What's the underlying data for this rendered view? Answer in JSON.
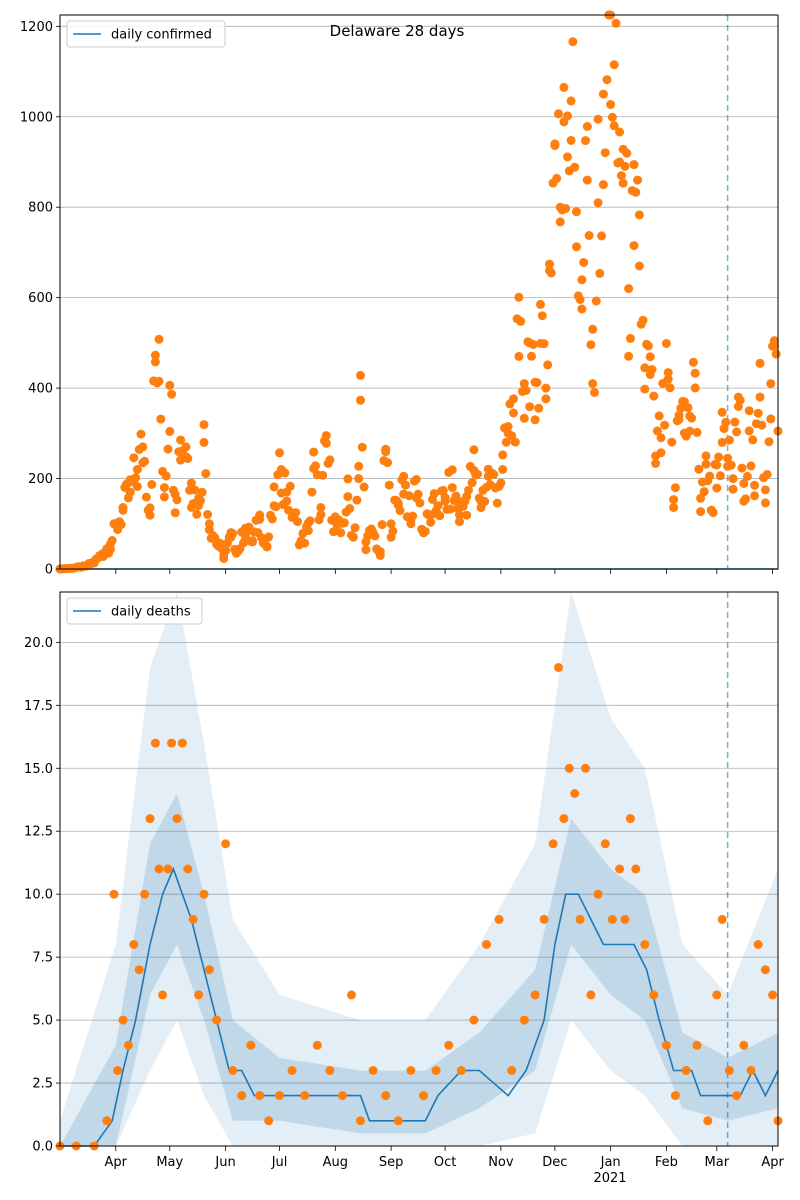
{
  "chart_data": [
    {
      "type": "scatter",
      "title": "Delaware 28 days",
      "legend": {
        "entries": [
          "daily confirmed"
        ],
        "placement": "top-left"
      },
      "ylim": [
        0,
        1225
      ],
      "yticks": [
        0,
        200,
        400,
        600,
        800,
        1000,
        1200
      ],
      "grid": "horizontal",
      "marker_color": "#ff7f0e",
      "line_color": "#1f77b4",
      "forecast_line_date": "2021-03-07",
      "x_range": [
        "2020-03-01",
        "2021-04-04"
      ],
      "line_points": [
        [
          "2020-03-01",
          0
        ],
        [
          "2021-04-04",
          0
        ]
      ],
      "monthly_points": [
        [
          "2020-03-01",
          0
        ],
        [
          "2020-03-08",
          2
        ],
        [
          "2020-03-15",
          6
        ],
        [
          "2020-03-20",
          15
        ],
        [
          "2020-03-25",
          35
        ],
        [
          "2020-03-29",
          55
        ],
        [
          "2020-04-02",
          100
        ],
        [
          "2020-04-05",
          130
        ],
        [
          "2020-04-09",
          170
        ],
        [
          "2020-04-13",
          220
        ],
        [
          "2020-04-16",
          270
        ],
        [
          "2020-04-20",
          135
        ],
        [
          "2020-04-23",
          458
        ],
        [
          "2020-04-25",
          415
        ],
        [
          "2020-04-28",
          180
        ],
        [
          "2020-05-01",
          406
        ],
        [
          "2020-05-04",
          165
        ],
        [
          "2020-05-07",
          285
        ],
        [
          "2020-05-10",
          270
        ],
        [
          "2020-05-13",
          190
        ],
        [
          "2020-05-17",
          140
        ],
        [
          "2020-05-20",
          280
        ],
        [
          "2020-05-23",
          100
        ],
        [
          "2020-05-27",
          60
        ],
        [
          "2020-05-31",
          30
        ],
        [
          "2020-06-04",
          70
        ],
        [
          "2020-06-08",
          40
        ],
        [
          "2020-06-12",
          90
        ],
        [
          "2020-06-16",
          60
        ],
        [
          "2020-06-20",
          110
        ],
        [
          "2020-06-24",
          50
        ],
        [
          "2020-06-28",
          140
        ],
        [
          "2020-07-02",
          220
        ],
        [
          "2020-07-05",
          170
        ],
        [
          "2020-07-09",
          120
        ],
        [
          "2020-07-13",
          60
        ],
        [
          "2020-07-17",
          85
        ],
        [
          "2020-07-20",
          222
        ],
        [
          "2020-07-24",
          120
        ],
        [
          "2020-07-27",
          278
        ],
        [
          "2020-07-31",
          110
        ],
        [
          "2020-08-04",
          80
        ],
        [
          "2020-08-08",
          160
        ],
        [
          "2020-08-11",
          70
        ],
        [
          "2020-08-14",
          200
        ],
        [
          "2020-08-15",
          373
        ],
        [
          "2020-08-18",
          60
        ],
        [
          "2020-08-22",
          80
        ],
        [
          "2020-08-26",
          30
        ],
        [
          "2020-08-29",
          265
        ],
        [
          "2020-09-01",
          100
        ],
        [
          "2020-09-05",
          145
        ],
        [
          "2020-09-08",
          205
        ],
        [
          "2020-09-12",
          100
        ],
        [
          "2020-09-15",
          198
        ],
        [
          "2020-09-19",
          80
        ],
        [
          "2020-09-23",
          120
        ],
        [
          "2020-09-27",
          140
        ],
        [
          "2020-10-01",
          150
        ],
        [
          "2020-10-05",
          180
        ],
        [
          "2020-10-09",
          120
        ],
        [
          "2020-10-13",
          160
        ],
        [
          "2020-10-17",
          218
        ],
        [
          "2020-10-21",
          150
        ],
        [
          "2020-10-25",
          205
        ],
        [
          "2020-10-29",
          180
        ],
        [
          "2020-11-02",
          220
        ],
        [
          "2020-11-05",
          300
        ],
        [
          "2020-11-08",
          345
        ],
        [
          "2020-11-11",
          470
        ],
        [
          "2020-11-14",
          410
        ],
        [
          "2020-11-17",
          500
        ],
        [
          "2020-11-20",
          330
        ],
        [
          "2020-11-23",
          585
        ],
        [
          "2020-11-26",
          400
        ],
        [
          "2020-11-28",
          660
        ],
        [
          "2020-12-01",
          940
        ],
        [
          "2020-12-04",
          800
        ],
        [
          "2020-12-06",
          1065
        ],
        [
          "2020-12-08",
          1002
        ],
        [
          "2020-12-10",
          1035
        ],
        [
          "2020-12-13",
          790
        ],
        [
          "2020-12-16",
          575
        ],
        [
          "2020-12-19",
          860
        ],
        [
          "2020-12-22",
          410
        ],
        [
          "2020-12-25",
          810
        ],
        [
          "2020-12-28",
          850
        ],
        [
          "2021-01-01",
          1230
        ],
        [
          "2021-01-03",
          980
        ],
        [
          "2021-01-06",
          900
        ],
        [
          "2021-01-08",
          928
        ],
        [
          "2021-01-11",
          620
        ],
        [
          "2021-01-14",
          715
        ],
        [
          "2021-01-17",
          670
        ],
        [
          "2021-01-20",
          445
        ],
        [
          "2021-01-23",
          430
        ],
        [
          "2021-01-26",
          250
        ],
        [
          "2021-01-29",
          290
        ],
        [
          "2021-02-02",
          420
        ],
        [
          "2021-02-05",
          136
        ],
        [
          "2021-02-08",
          340
        ],
        [
          "2021-02-11",
          370
        ],
        [
          "2021-02-14",
          305
        ],
        [
          "2021-02-17",
          433
        ],
        [
          "2021-02-20",
          127
        ],
        [
          "2021-02-23",
          250
        ],
        [
          "2021-02-26",
          130
        ],
        [
          "2021-03-01",
          230
        ],
        [
          "2021-03-04",
          280
        ],
        [
          "2021-03-07",
          245
        ],
        [
          "2021-03-10",
          200
        ],
        [
          "2021-03-13",
          380
        ],
        [
          "2021-03-16",
          150
        ],
        [
          "2021-03-19",
          350
        ],
        [
          "2021-03-22",
          185
        ],
        [
          "2021-03-25",
          380
        ],
        [
          "2021-03-28",
          175
        ],
        [
          "2021-03-31",
          410
        ],
        [
          "2021-04-02",
          493
        ],
        [
          "2021-04-04",
          305
        ]
      ]
    },
    {
      "type": "scatter",
      "legend": {
        "entries": [
          "daily deaths"
        ],
        "placement": "top-left"
      },
      "ylim": [
        0,
        22
      ],
      "yticks": [
        "0.0",
        "2.5",
        "5.0",
        "7.5",
        "10.0",
        "12.5",
        "15.0",
        "17.5",
        "20.0"
      ],
      "grid": "horizontal",
      "marker_color": "#ff7f0e",
      "line_color": "#1f77b4",
      "band_color": "#1f77b4",
      "forecast_line_date": "2021-03-07",
      "x_range": [
        "2020-03-01",
        "2021-04-04"
      ],
      "xticks": [
        "Apr",
        "May",
        "Jun",
        "Jul",
        "Aug",
        "Sep",
        "Oct",
        "Nov",
        "Dec",
        "Jan",
        "Feb",
        "Mar",
        "Apr"
      ],
      "xtick_dates": [
        "2020-04-01",
        "2020-05-01",
        "2020-06-01",
        "2020-07-01",
        "2020-08-01",
        "2020-09-01",
        "2020-10-01",
        "2020-11-01",
        "2020-12-01",
        "2021-01-01",
        "2021-02-01",
        "2021-03-01",
        "2021-04-01"
      ],
      "year_label": "2021",
      "line_points": [
        [
          "2020-03-01",
          0
        ],
        [
          "2020-03-20",
          0
        ],
        [
          "2020-03-30",
          1
        ],
        [
          "2020-04-05",
          3
        ],
        [
          "2020-04-12",
          5
        ],
        [
          "2020-04-20",
          8
        ],
        [
          "2020-04-27",
          10
        ],
        [
          "2020-05-03",
          11
        ],
        [
          "2020-05-08",
          10
        ],
        [
          "2020-05-13",
          9
        ],
        [
          "2020-05-20",
          7
        ],
        [
          "2020-05-27",
          5
        ],
        [
          "2020-06-03",
          3
        ],
        [
          "2020-06-10",
          3
        ],
        [
          "2020-06-17",
          2
        ],
        [
          "2020-08-15",
          2
        ],
        [
          "2020-08-20",
          1
        ],
        [
          "2020-09-20",
          1
        ],
        [
          "2020-09-27",
          2
        ],
        [
          "2020-10-10",
          3
        ],
        [
          "2020-10-20",
          3
        ],
        [
          "2020-11-05",
          2
        ],
        [
          "2020-11-15",
          3
        ],
        [
          "2020-11-25",
          5
        ],
        [
          "2020-12-01",
          8
        ],
        [
          "2020-12-07",
          10
        ],
        [
          "2020-12-14",
          10
        ],
        [
          "2020-12-21",
          9
        ],
        [
          "2020-12-28",
          8
        ],
        [
          "2021-01-05",
          8
        ],
        [
          "2021-01-14",
          8
        ],
        [
          "2021-01-21",
          7
        ],
        [
          "2021-01-28",
          5
        ],
        [
          "2021-02-05",
          3
        ],
        [
          "2021-02-15",
          3
        ],
        [
          "2021-02-20",
          2
        ],
        [
          "2021-03-07",
          2
        ],
        [
          "2021-03-14",
          2
        ],
        [
          "2021-03-21",
          3
        ],
        [
          "2021-03-28",
          2
        ],
        [
          "2021-04-04",
          3
        ]
      ],
      "band_inner": [
        [
          "2020-03-01",
          0,
          0
        ],
        [
          "2020-04-01",
          0,
          4
        ],
        [
          "2020-04-20",
          6,
          12
        ],
        [
          "2020-05-05",
          8,
          14
        ],
        [
          "2020-05-20",
          5,
          10
        ],
        [
          "2020-06-05",
          1,
          5
        ],
        [
          "2020-07-01",
          1,
          3.5
        ],
        [
          "2020-08-15",
          0.5,
          3
        ],
        [
          "2020-09-20",
          0.5,
          3
        ],
        [
          "2020-10-20",
          1.5,
          4.5
        ],
        [
          "2020-11-20",
          3,
          7
        ],
        [
          "2020-12-10",
          8,
          13
        ],
        [
          "2021-01-01",
          6,
          11
        ],
        [
          "2021-01-20",
          5,
          10
        ],
        [
          "2021-02-10",
          1.5,
          4.5
        ],
        [
          "2021-03-07",
          1,
          3.5
        ],
        [
          "2021-04-04",
          1.5,
          4.5
        ]
      ],
      "band_outer": [
        [
          "2020-03-01",
          0,
          1
        ],
        [
          "2020-04-01",
          0,
          8
        ],
        [
          "2020-04-20",
          3,
          19
        ],
        [
          "2020-05-05",
          5,
          23
        ],
        [
          "2020-05-20",
          2,
          16
        ],
        [
          "2020-06-05",
          0,
          9
        ],
        [
          "2020-07-01",
          0,
          6
        ],
        [
          "2020-08-15",
          0,
          5
        ],
        [
          "2020-09-20",
          0,
          5
        ],
        [
          "2020-10-20",
          0,
          8
        ],
        [
          "2020-11-20",
          0.5,
          12
        ],
        [
          "2020-12-10",
          5,
          23
        ],
        [
          "2021-01-01",
          3,
          17
        ],
        [
          "2021-01-20",
          2,
          15
        ],
        [
          "2021-02-10",
          0,
          8
        ],
        [
          "2021-03-07",
          0,
          6
        ],
        [
          "2021-04-04",
          0,
          11
        ]
      ],
      "points": [
        [
          "2020-03-01",
          0
        ],
        [
          "2020-03-10",
          0
        ],
        [
          "2020-03-20",
          0
        ],
        [
          "2020-03-27",
          1
        ],
        [
          "2020-03-31",
          10
        ],
        [
          "2020-04-02",
          3
        ],
        [
          "2020-04-05",
          5
        ],
        [
          "2020-04-08",
          4
        ],
        [
          "2020-04-11",
          8
        ],
        [
          "2020-04-14",
          7
        ],
        [
          "2020-04-17",
          10
        ],
        [
          "2020-04-20",
          13
        ],
        [
          "2020-04-23",
          16
        ],
        [
          "2020-04-25",
          11
        ],
        [
          "2020-04-27",
          6
        ],
        [
          "2020-04-30",
          11
        ],
        [
          "2020-05-02",
          16
        ],
        [
          "2020-05-05",
          13
        ],
        [
          "2020-05-08",
          16
        ],
        [
          "2020-05-11",
          11
        ],
        [
          "2020-05-14",
          9
        ],
        [
          "2020-05-17",
          6
        ],
        [
          "2020-05-20",
          10
        ],
        [
          "2020-05-23",
          7
        ],
        [
          "2020-05-27",
          5
        ],
        [
          "2020-06-01",
          12
        ],
        [
          "2020-06-05",
          3
        ],
        [
          "2020-06-10",
          2
        ],
        [
          "2020-06-15",
          4
        ],
        [
          "2020-06-20",
          2
        ],
        [
          "2020-06-25",
          1
        ],
        [
          "2020-07-01",
          2
        ],
        [
          "2020-07-08",
          3
        ],
        [
          "2020-07-15",
          2
        ],
        [
          "2020-07-22",
          4
        ],
        [
          "2020-07-29",
          3
        ],
        [
          "2020-08-05",
          2
        ],
        [
          "2020-08-10",
          6
        ],
        [
          "2020-08-15",
          1
        ],
        [
          "2020-08-22",
          3
        ],
        [
          "2020-08-29",
          2
        ],
        [
          "2020-09-05",
          1
        ],
        [
          "2020-09-12",
          3
        ],
        [
          "2020-09-19",
          2
        ],
        [
          "2020-09-26",
          3
        ],
        [
          "2020-10-03",
          4
        ],
        [
          "2020-10-10",
          3
        ],
        [
          "2020-10-17",
          5
        ],
        [
          "2020-10-24",
          8
        ],
        [
          "2020-10-31",
          9
        ],
        [
          "2020-11-07",
          3
        ],
        [
          "2020-11-14",
          5
        ],
        [
          "2020-11-20",
          6
        ],
        [
          "2020-11-25",
          9
        ],
        [
          "2020-11-30",
          12
        ],
        [
          "2020-12-03",
          19
        ],
        [
          "2020-12-06",
          13
        ],
        [
          "2020-12-09",
          15
        ],
        [
          "2020-12-12",
          14
        ],
        [
          "2020-12-15",
          9
        ],
        [
          "2020-12-18",
          15
        ],
        [
          "2020-12-21",
          6
        ],
        [
          "2020-12-25",
          10
        ],
        [
          "2020-12-29",
          12
        ],
        [
          "2021-01-02",
          9
        ],
        [
          "2021-01-06",
          11
        ],
        [
          "2021-01-09",
          9
        ],
        [
          "2021-01-12",
          13
        ],
        [
          "2021-01-15",
          11
        ],
        [
          "2021-01-20",
          8
        ],
        [
          "2021-01-25",
          6
        ],
        [
          "2021-02-01",
          4
        ],
        [
          "2021-02-06",
          2
        ],
        [
          "2021-02-12",
          3
        ],
        [
          "2021-02-18",
          4
        ],
        [
          "2021-02-24",
          1
        ],
        [
          "2021-03-01",
          6
        ],
        [
          "2021-03-04",
          9
        ],
        [
          "2021-03-08",
          3
        ],
        [
          "2021-03-12",
          2
        ],
        [
          "2021-03-16",
          4
        ],
        [
          "2021-03-20",
          3
        ],
        [
          "2021-03-24",
          8
        ],
        [
          "2021-03-28",
          7
        ],
        [
          "2021-04-01",
          6
        ],
        [
          "2021-04-04",
          1
        ]
      ]
    }
  ]
}
